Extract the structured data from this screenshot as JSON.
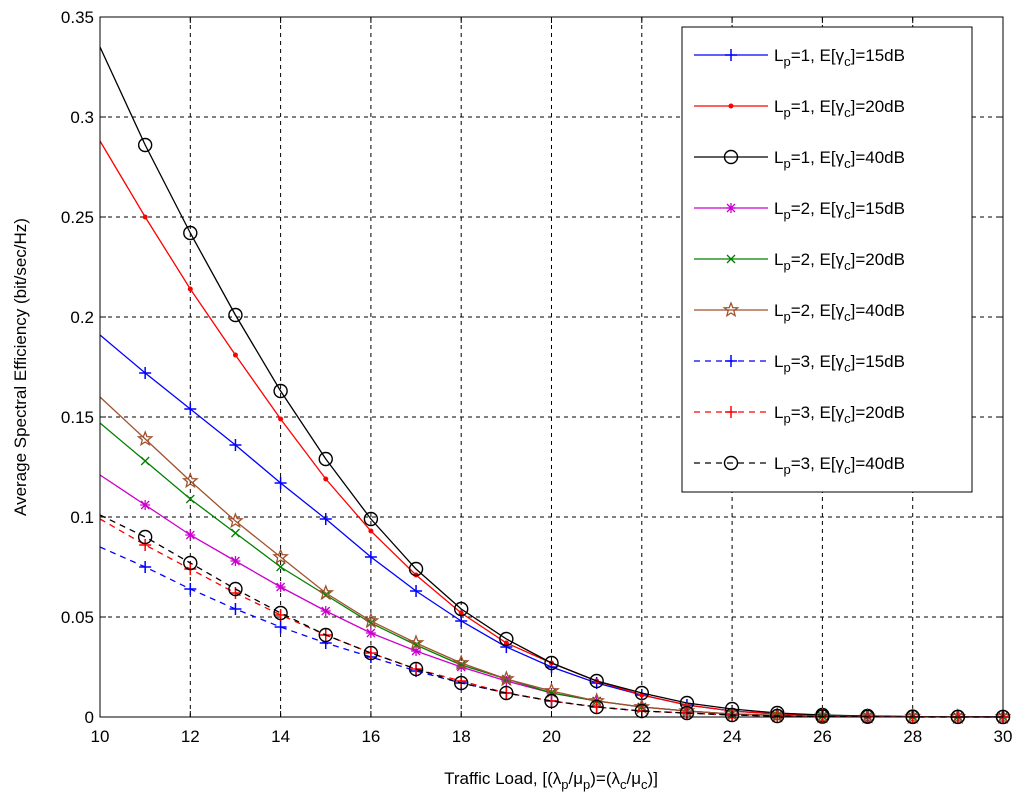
{
  "chart_data": {
    "type": "line",
    "title": "",
    "xlabel": "Traffic Load, [(λp/μp)=(λc/μc)]",
    "ylabel": "Average Spectral Efficiency (bit/sec/Hz)",
    "xlim": [
      10,
      30
    ],
    "ylim": [
      0,
      0.35
    ],
    "xticks": [
      10,
      12,
      14,
      16,
      18,
      20,
      22,
      24,
      26,
      28,
      30
    ],
    "yticks": [
      0,
      0.05,
      0.1,
      0.15,
      0.2,
      0.25,
      0.3,
      0.35
    ],
    "xtick_labels": [
      "10",
      "12",
      "14",
      "16",
      "18",
      "20",
      "22",
      "24",
      "26",
      "28",
      "30"
    ],
    "ytick_labels": [
      "0",
      "0.05",
      "0.1",
      "0.15",
      "0.2",
      "0.25",
      "0.3",
      "0.35"
    ],
    "grid": true,
    "legend_position": "top-right",
    "x": [
      10,
      11,
      12,
      13,
      14,
      15,
      16,
      17,
      18,
      19,
      20,
      21,
      22,
      23,
      24,
      25,
      26,
      27,
      28,
      29,
      30
    ],
    "series": [
      {
        "name": "Lp=1, E[γc]=15dB",
        "legend": {
          "pre": "L",
          "sub1": "p",
          "mid": "=1, E[γ",
          "sub2": "c",
          "post": "]=15dB"
        },
        "color": "#0000ff",
        "marker": "plus",
        "dash": "solid",
        "values": [
          0.191,
          0.172,
          0.154,
          0.136,
          0.117,
          0.099,
          0.08,
          0.063,
          0.048,
          0.035,
          0.025,
          0.017,
          0.011,
          0.006,
          0.003,
          0.0015,
          0.0008,
          0.0004,
          0.0002,
          0.0001,
          5e-05
        ]
      },
      {
        "name": "Lp=1, E[γc]=20dB",
        "legend": {
          "pre": "L",
          "sub1": "p",
          "mid": "=1, E[γ",
          "sub2": "c",
          "post": "]=20dB"
        },
        "color": "#ff0000",
        "marker": "dot",
        "dash": "solid",
        "values": [
          0.288,
          0.25,
          0.214,
          0.181,
          0.149,
          0.119,
          0.093,
          0.071,
          0.052,
          0.037,
          0.027,
          0.018,
          0.011,
          0.006,
          0.003,
          0.0015,
          0.0008,
          0.0004,
          0.0002,
          0.0001,
          5e-05
        ]
      },
      {
        "name": "Lp=1, E[γc]=40dB",
        "legend": {
          "pre": "L",
          "sub1": "p",
          "mid": "=1, E[γ",
          "sub2": "c",
          "post": "]=40dB"
        },
        "color": "#000000",
        "marker": "circle",
        "dash": "solid",
        "values": [
          0.335,
          0.286,
          0.242,
          0.201,
          0.163,
          0.129,
          0.099,
          0.074,
          0.054,
          0.039,
          0.027,
          0.018,
          0.012,
          0.007,
          0.004,
          0.002,
          0.001,
          0.0005,
          0.0002,
          0.0001,
          5e-05
        ]
      },
      {
        "name": "Lp=2, E[γc]=15dB",
        "legend": {
          "pre": "L",
          "sub1": "p",
          "mid": "=2, E[γ",
          "sub2": "c",
          "post": "]=15dB"
        },
        "color": "#cc00cc",
        "marker": "asterisk",
        "dash": "solid",
        "values": [
          0.121,
          0.106,
          0.091,
          0.078,
          0.065,
          0.053,
          0.042,
          0.033,
          0.025,
          0.018,
          0.012,
          0.008,
          0.005,
          0.003,
          0.0015,
          0.0008,
          0.0004,
          0.0002,
          0.0001,
          5e-05,
          2e-05
        ]
      },
      {
        "name": "Lp=2, E[γc]=20dB",
        "legend": {
          "pre": "L",
          "sub1": "p",
          "mid": "=2, E[γ",
          "sub2": "c",
          "post": "]=20dB"
        },
        "color": "#008000",
        "marker": "x",
        "dash": "solid",
        "values": [
          0.147,
          0.128,
          0.109,
          0.092,
          0.075,
          0.061,
          0.047,
          0.036,
          0.026,
          0.019,
          0.012,
          0.008,
          0.005,
          0.003,
          0.0015,
          0.0008,
          0.0004,
          0.0002,
          0.0001,
          5e-05,
          2e-05
        ]
      },
      {
        "name": "Lp=2, E[γc]=40dB",
        "legend": {
          "pre": "L",
          "sub1": "p",
          "mid": "=2, E[γ",
          "sub2": "c",
          "post": "]=40dB"
        },
        "color": "#a0522d",
        "marker": "star",
        "dash": "solid",
        "values": [
          0.16,
          0.139,
          0.118,
          0.098,
          0.08,
          0.062,
          0.048,
          0.037,
          0.027,
          0.019,
          0.013,
          0.008,
          0.005,
          0.003,
          0.0015,
          0.0008,
          0.0004,
          0.0002,
          0.0001,
          5e-05,
          2e-05
        ]
      },
      {
        "name": "Lp=3, E[γc]=15dB",
        "legend": {
          "pre": "L",
          "sub1": "p",
          "mid": "=3, E[γ",
          "sub2": "c",
          "post": "]=15dB"
        },
        "color": "#0000ff",
        "marker": "plus",
        "dash": "dashed",
        "values": [
          0.085,
          0.075,
          0.064,
          0.054,
          0.045,
          0.037,
          0.03,
          0.023,
          0.017,
          0.012,
          0.008,
          0.005,
          0.003,
          0.002,
          0.001,
          0.0005,
          0.0002,
          0.0001,
          5e-05,
          2e-05,
          1e-05
        ]
      },
      {
        "name": "Lp=3, E[γc]=20dB",
        "legend": {
          "pre": "L",
          "sub1": "p",
          "mid": "=3, E[γ",
          "sub2": "c",
          "post": "]=20dB"
        },
        "color": "#ff0000",
        "marker": "plus",
        "dash": "dashed",
        "values": [
          0.099,
          0.086,
          0.074,
          0.062,
          0.051,
          0.041,
          0.032,
          0.024,
          0.018,
          0.012,
          0.008,
          0.005,
          0.003,
          0.002,
          0.001,
          0.0005,
          0.0002,
          0.0001,
          5e-05,
          2e-05,
          1e-05
        ]
      },
      {
        "name": "Lp=3, E[γc]=40dB",
        "legend": {
          "pre": "L",
          "sub1": "p",
          "mid": "=3, E[γ",
          "sub2": "c",
          "post": "]=40dB"
        },
        "color": "#000000",
        "marker": "circle",
        "dash": "dashed",
        "values": [
          0.101,
          0.09,
          0.077,
          0.064,
          0.052,
          0.041,
          0.032,
          0.024,
          0.017,
          0.012,
          0.008,
          0.005,
          0.003,
          0.002,
          0.001,
          0.0005,
          0.0002,
          0.0001,
          5e-05,
          2e-05,
          1e-05
        ]
      }
    ]
  }
}
